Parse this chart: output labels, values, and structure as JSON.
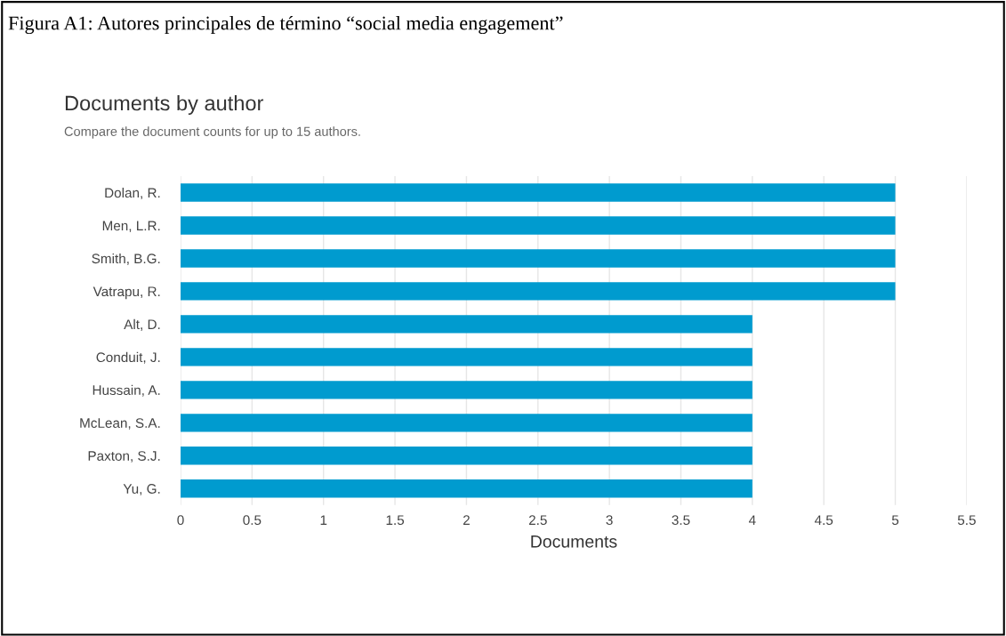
{
  "chart_data": {
    "type": "bar",
    "orientation": "horizontal",
    "title": "Documents by author",
    "subtitle": "Compare the document counts for up to 15 authors.",
    "xlabel": "Documents",
    "annotations": [
      "Figura A1: Autores principales de término “social media engagement”"
    ],
    "categories": [
      "Dolan, R.",
      "Men, L.R.",
      "Smith, B.G.",
      "Vatrapu, R.",
      "Alt, D.",
      "Conduit, J.",
      "Hussain, A.",
      "McLean, S.A.",
      "Paxton, S.J.",
      "Yu, G."
    ],
    "values": [
      5,
      5,
      5,
      5,
      4,
      4,
      4,
      4,
      4,
      4
    ],
    "color": "#009bcf",
    "xlim": [
      0,
      5.5
    ],
    "xticks": [
      0,
      0.5,
      1,
      1.5,
      2,
      2.5,
      3,
      3.5,
      4,
      4.5,
      5,
      5.5
    ],
    "grid": "x",
    "legend": false
  }
}
